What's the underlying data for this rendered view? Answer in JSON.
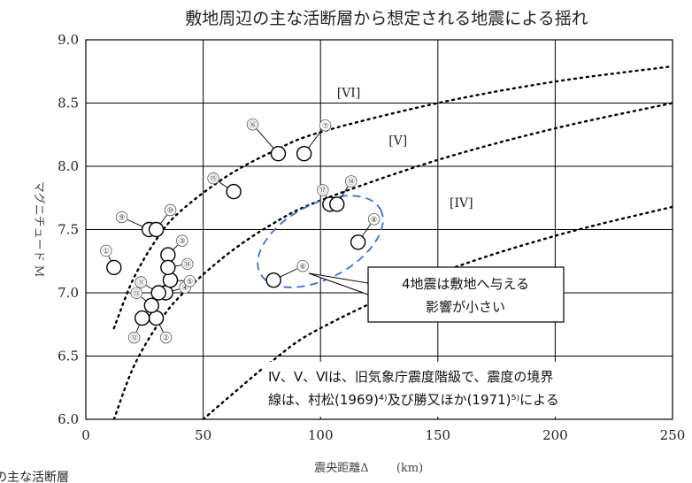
{
  "chart_data": {
    "type": "scatter",
    "title": "敷地周辺の主な活断層から想定される地震による揺れ",
    "xlabel": "震央距離Δ",
    "xunit": "(km)",
    "ylabel": "マグニチュード M",
    "xlim": [
      0,
      250
    ],
    "ylim": [
      6.0,
      9.0
    ],
    "xticks": [
      "0",
      "50",
      "100",
      "150",
      "200",
      "250"
    ],
    "yticks": [
      "6.0",
      "6.5",
      "7.0",
      "7.5",
      "8.0",
      "8.5",
      "9.0"
    ],
    "grid": true,
    "points": [
      {
        "id": "①",
        "x": 12,
        "y": 7.2
      },
      {
        "id": "②",
        "x": 30,
        "y": 6.8
      },
      {
        "id": "③",
        "x": 35,
        "y": 7.3
      },
      {
        "id": "④",
        "x": 34,
        "y": 7.0
      },
      {
        "id": "⑤",
        "x": 36,
        "y": 7.1
      },
      {
        "id": "⑥",
        "x": 80,
        "y": 7.1
      },
      {
        "id": "⑦",
        "x": 93,
        "y": 8.1
      },
      {
        "id": "⑧",
        "x": 116,
        "y": 7.4
      },
      {
        "id": "⑨",
        "x": 27,
        "y": 7.5
      },
      {
        "id": "⑩",
        "x": 30,
        "y": 7.5
      },
      {
        "id": "⑪",
        "x": 31,
        "y": 7.0
      },
      {
        "id": "⑫",
        "x": 24,
        "y": 6.8
      },
      {
        "id": "⑬",
        "x": 28,
        "y": 6.9
      },
      {
        "id": "⑭",
        "x": 35,
        "y": 7.2
      },
      {
        "id": "⑮",
        "x": 63,
        "y": 7.8
      },
      {
        "id": "⑯",
        "x": 82,
        "y": 8.1
      },
      {
        "id": "⑰",
        "x": 104,
        "y": 7.7
      },
      {
        "id": "⑱",
        "x": 107,
        "y": 7.7
      }
    ],
    "intensity_boundaries": [
      {
        "name": "VI/V",
        "points": [
          [
            12,
            6.72
          ],
          [
            20,
            7.1
          ],
          [
            30,
            7.42
          ],
          [
            40,
            7.64
          ],
          [
            60,
            7.92
          ],
          [
            80,
            8.12
          ],
          [
            100,
            8.27
          ],
          [
            150,
            8.5
          ],
          [
            200,
            8.67
          ],
          [
            250,
            8.79
          ]
        ]
      },
      {
        "name": "V/IV",
        "points": [
          [
            12,
            6.0
          ],
          [
            20,
            6.4
          ],
          [
            30,
            6.73
          ],
          [
            40,
            6.97
          ],
          [
            60,
            7.3
          ],
          [
            80,
            7.55
          ],
          [
            100,
            7.73
          ],
          [
            150,
            8.05
          ],
          [
            200,
            8.3
          ],
          [
            250,
            8.5
          ]
        ]
      },
      {
        "name": "IV/III",
        "points": [
          [
            50,
            6.0
          ],
          [
            60,
            6.16
          ],
          [
            80,
            6.47
          ],
          [
            100,
            6.72
          ],
          [
            150,
            7.15
          ],
          [
            200,
            7.45
          ],
          [
            250,
            7.68
          ]
        ]
      }
    ],
    "zone_labels": [
      {
        "text": "[VI]",
        "x": 112,
        "y": 8.55
      },
      {
        "text": "[V]",
        "x": 133,
        "y": 8.17
      },
      {
        "text": "[IV]",
        "x": 160,
        "y": 7.68
      }
    ],
    "annotations": {
      "callout": [
        "4地震は敷地へ与える",
        "影響が小さい"
      ],
      "note": [
        "Ⅳ、Ⅴ、Ⅵは、旧気象庁震度階級で、震度の境界",
        "線は、村松(1969)⁴⁾及び勝又ほか(1971)⁵⁾による"
      ]
    }
  },
  "footer_text": "の主な活断層"
}
